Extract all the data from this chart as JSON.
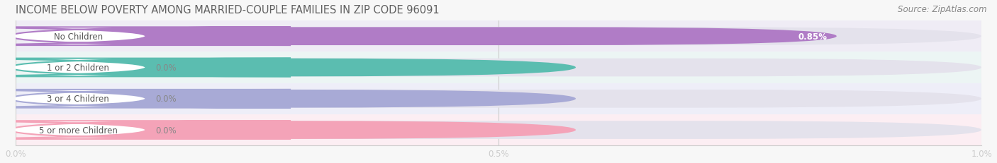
{
  "title": "INCOME BELOW POVERTY AMONG MARRIED-COUPLE FAMILIES IN ZIP CODE 96091",
  "source": "Source: ZipAtlas.com",
  "categories": [
    "No Children",
    "1 or 2 Children",
    "3 or 4 Children",
    "5 or more Children"
  ],
  "values": [
    0.85,
    0.0,
    0.0,
    0.0
  ],
  "bar_colors": [
    "#b07cc6",
    "#5bbdb0",
    "#a8aad6",
    "#f4a3b8"
  ],
  "bar_bg_color": "#e4e2ec",
  "xlim": [
    0,
    1.0
  ],
  "xticks": [
    0.0,
    0.5,
    1.0
  ],
  "xtick_labels": [
    "0.0%",
    "0.5%",
    "1.0%"
  ],
  "title_color": "#606060",
  "title_fontsize": 10.5,
  "source_fontsize": 8.5,
  "fig_bg_color": "#f7f7f7",
  "bar_height": 0.58,
  "row_bg_colors": [
    "#efecf5",
    "#ecf5f4",
    "#eeeef8",
    "#fceef3"
  ],
  "value_inside_color": "#ffffff",
  "value_outside_color": "#888888",
  "label_text_color": "#555555",
  "label_fontsize": 8.5,
  "value_fontsize": 8.5,
  "grid_color": "#cccccc",
  "spine_color": "#cccccc"
}
